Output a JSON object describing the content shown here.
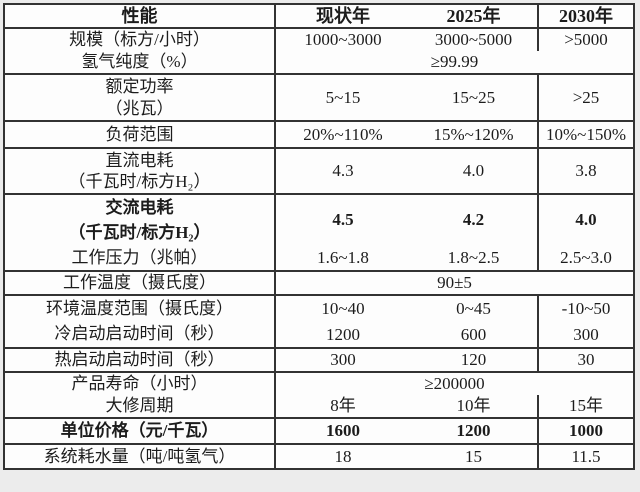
{
  "colors": {
    "page_background": "#ececec",
    "table_background": "#fdfdfd",
    "border": "#333333",
    "text": "#1c1c1c"
  },
  "table": {
    "header": {
      "performance": "性能",
      "current_year": "现状年",
      "year_2025": "2025年",
      "year_2030": "2030年"
    },
    "blocks": [
      {
        "labels": [
          "规模（标方/小时）",
          "氢气纯度（%）"
        ],
        "row1": [
          "1000~3000",
          "3000~5000",
          ">5000"
        ],
        "span": "≥99.99"
      },
      {
        "labels": [
          "额定功率",
          "（兆瓦）"
        ],
        "values": [
          "5~15",
          "15~25",
          ">25"
        ]
      },
      {
        "labels": [
          "负荷范围"
        ],
        "values": [
          "20%~110%",
          "15%~120%",
          "10%~150%"
        ]
      },
      {
        "labels": [
          "直流电耗",
          "（千瓦时/标方H₂）"
        ],
        "values": [
          "4.3",
          "4.0",
          "3.8"
        ]
      },
      {
        "labels": [
          "交流电耗",
          "（千瓦时/标方H₂）",
          "工作压力（兆帕）"
        ],
        "values_top": [
          "4.5",
          "4.2",
          "4.0"
        ],
        "values_bottom": [
          "1.6~1.8",
          "1.8~2.5",
          "2.5~3.0"
        ]
      },
      {
        "labels": [
          "工作温度（摄氏度）"
        ],
        "span": "90±5"
      },
      {
        "labels": [
          "环境温度范围（摄氏度）",
          "冷启动启动时间（秒）"
        ],
        "row1": [
          "10~40",
          "0~45",
          "-10~50"
        ],
        "row2": [
          "1200",
          "600",
          "300"
        ]
      },
      {
        "labels": [
          "热启动启动时间（秒）"
        ],
        "values": [
          "300",
          "120",
          "30"
        ]
      },
      {
        "labels": [
          "产品寿命（小时）",
          "大修周期"
        ],
        "span": "≥200000",
        "row2": [
          "8年",
          "10年",
          "15年"
        ]
      },
      {
        "labels": [
          "单位价格（元/千瓦）"
        ],
        "values": [
          "1600",
          "1200",
          "1000"
        ]
      },
      {
        "labels": [
          "系统耗水量（吨/吨氢气）"
        ],
        "values": [
          "18",
          "15",
          "11.5"
        ]
      }
    ]
  }
}
